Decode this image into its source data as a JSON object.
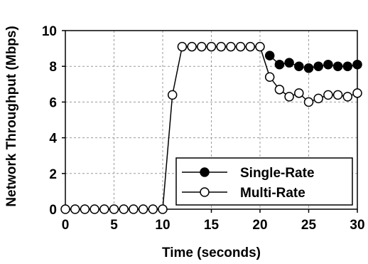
{
  "chart_data": {
    "type": "line",
    "title": "",
    "xlabel": "Time (seconds)",
    "ylabel": "Network Throughput (Mbps)",
    "xlim": [
      0,
      30
    ],
    "ylim": [
      0,
      10
    ],
    "x_ticks": [
      "0",
      "5",
      "10",
      "15",
      "20",
      "25",
      "30"
    ],
    "y_ticks": [
      "0",
      "2",
      "4",
      "6",
      "8",
      "10"
    ],
    "grid": true,
    "legend_position": "bottom-right",
    "series": [
      {
        "name": "Single-Rate",
        "marker": "filled-circle",
        "color": "#000000",
        "x": [
          21,
          22,
          23,
          24,
          25,
          26,
          27,
          28,
          29,
          30
        ],
        "y": [
          8.6,
          8.1,
          8.2,
          8.0,
          7.9,
          8.0,
          8.1,
          8.0,
          8.0,
          8.1
        ]
      },
      {
        "name": "Multi-Rate",
        "marker": "open-circle",
        "color": "#000000",
        "x": [
          0,
          1,
          2,
          3,
          4,
          5,
          6,
          7,
          8,
          9,
          10,
          11,
          12,
          13,
          14,
          15,
          16,
          17,
          18,
          19,
          20,
          21,
          22,
          23,
          24,
          25,
          26,
          27,
          28,
          29,
          30
        ],
        "y": [
          0,
          0,
          0,
          0,
          0,
          0,
          0,
          0,
          0,
          0,
          0,
          6.4,
          9.1,
          9.1,
          9.1,
          9.1,
          9.1,
          9.1,
          9.1,
          9.1,
          9.1,
          7.4,
          6.7,
          6.3,
          6.5,
          6.0,
          6.2,
          6.4,
          6.4,
          6.3,
          6.5
        ]
      }
    ]
  }
}
